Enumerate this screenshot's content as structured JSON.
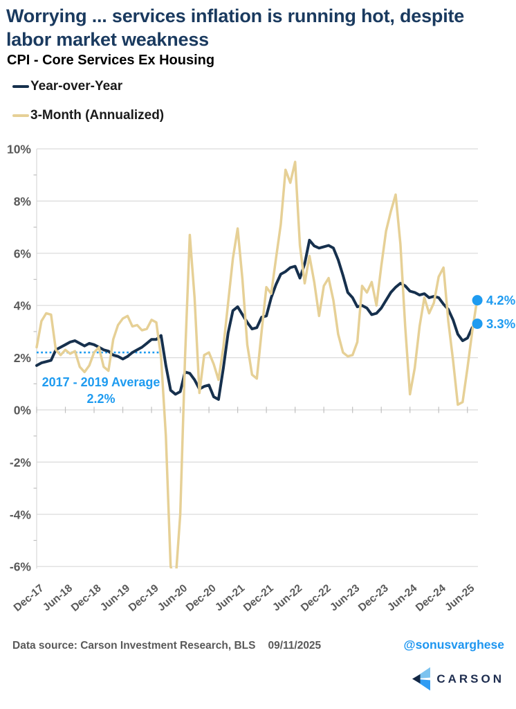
{
  "header": {
    "title_line1": "Worrying ... services inflation is running hot, despite",
    "title_line2": "labor market weakness",
    "subtitle": "CPI - Core Services Ex Housing"
  },
  "legend": {
    "items": [
      {
        "label": "Year-over-Year",
        "color": "#16304d"
      },
      {
        "label": "3-Month (Annualized)",
        "color": "#e6d096"
      }
    ]
  },
  "chart_data": {
    "type": "line",
    "title": "CPI - Core Services Ex Housing",
    "x_range": {
      "start": "Dec-2017",
      "end": "Aug-2025",
      "frequency": "monthly"
    },
    "months": [
      "Dec-17",
      "Jan-18",
      "Feb-18",
      "Mar-18",
      "Apr-18",
      "May-18",
      "Jun-18",
      "Jul-18",
      "Aug-18",
      "Sep-18",
      "Oct-18",
      "Nov-18",
      "Dec-18",
      "Jan-19",
      "Feb-19",
      "Mar-19",
      "Apr-19",
      "May-19",
      "Jun-19",
      "Jul-19",
      "Aug-19",
      "Sep-19",
      "Oct-19",
      "Nov-19",
      "Dec-19",
      "Jan-20",
      "Feb-20",
      "Mar-20",
      "Apr-20",
      "May-20",
      "Jun-20",
      "Jul-20",
      "Aug-20",
      "Sep-20",
      "Oct-20",
      "Nov-20",
      "Dec-20",
      "Jan-21",
      "Feb-21",
      "Mar-21",
      "Apr-21",
      "May-21",
      "Jun-21",
      "Jul-21",
      "Aug-21",
      "Sep-21",
      "Oct-21",
      "Nov-21",
      "Dec-21",
      "Jan-22",
      "Feb-22",
      "Mar-22",
      "Apr-22",
      "May-22",
      "Jun-22",
      "Jul-22",
      "Aug-22",
      "Sep-22",
      "Oct-22",
      "Nov-22",
      "Dec-22",
      "Jan-23",
      "Feb-23",
      "Mar-23",
      "Apr-23",
      "May-23",
      "Jun-23",
      "Jul-23",
      "Aug-23",
      "Sep-23",
      "Oct-23",
      "Nov-23",
      "Dec-23",
      "Jan-24",
      "Feb-24",
      "Mar-24",
      "Apr-24",
      "May-24",
      "Jun-24",
      "Jul-24",
      "Aug-24",
      "Sep-24",
      "Oct-24",
      "Nov-24",
      "Dec-24",
      "Jan-25",
      "Feb-25",
      "Mar-25",
      "Apr-25",
      "May-25",
      "Jun-25",
      "Jul-25",
      "Aug-25"
    ],
    "x_tick_labels": [
      "Dec-17",
      "Jun-18",
      "Dec-18",
      "Jun-19",
      "Dec-19",
      "Jun-20",
      "Dec-20",
      "Jun-21",
      "Dec-21",
      "Jun-22",
      "Dec-22",
      "Jun-23",
      "Dec-23",
      "Jun-24",
      "Dec-24",
      "Jun-25"
    ],
    "y_tick_labels": [
      "10%",
      "8%",
      "6%",
      "4%",
      "2%",
      "0%",
      "-2%",
      "-4%",
      "-6%"
    ],
    "y_tick_values": [
      10,
      8,
      6,
      4,
      2,
      0,
      -2,
      -4,
      -6
    ],
    "ylim": [
      -6,
      10
    ],
    "grid": "horizontal",
    "legend_position": "top-left",
    "series": [
      {
        "name": "Year-over-Year",
        "color": "#16304d",
        "line_width": 4,
        "values": [
          1.7,
          1.8,
          1.85,
          1.9,
          2.3,
          2.4,
          2.5,
          2.6,
          2.65,
          2.55,
          2.45,
          2.55,
          2.5,
          2.4,
          2.3,
          2.25,
          2.1,
          2.05,
          1.95,
          2.05,
          2.2,
          2.3,
          2.4,
          2.55,
          2.7,
          2.7,
          2.85,
          1.7,
          0.75,
          0.6,
          0.7,
          1.45,
          1.4,
          1.15,
          0.8,
          0.9,
          0.95,
          0.5,
          0.4,
          1.6,
          2.95,
          3.8,
          3.95,
          3.65,
          3.35,
          3.1,
          3.15,
          3.55,
          3.6,
          4.3,
          4.8,
          5.2,
          5.3,
          5.45,
          5.5,
          5.05,
          5.6,
          6.5,
          6.28,
          6.2,
          6.25,
          6.3,
          6.2,
          5.75,
          5.15,
          4.5,
          4.3,
          3.95,
          4.0,
          3.9,
          3.65,
          3.7,
          3.9,
          4.2,
          4.5,
          4.7,
          4.85,
          4.75,
          4.55,
          4.5,
          4.4,
          4.45,
          4.3,
          4.35,
          4.3,
          4.05,
          3.85,
          3.45,
          2.9,
          2.65,
          2.75,
          3.15,
          3.3
        ]
      },
      {
        "name": "3-Month (Annualized)",
        "color": "#e6d096",
        "line_width": 3.5,
        "values": [
          2.4,
          3.4,
          3.7,
          3.65,
          2.3,
          2.1,
          2.3,
          2.15,
          2.25,
          1.65,
          1.45,
          1.7,
          2.2,
          2.4,
          1.65,
          1.5,
          2.7,
          3.25,
          3.5,
          3.6,
          3.2,
          3.25,
          3.05,
          3.1,
          3.45,
          3.35,
          2.0,
          -1.0,
          -6.0,
          -6.6,
          -4.0,
          2.0,
          6.7,
          4.3,
          0.65,
          2.1,
          2.2,
          1.75,
          1.15,
          2.4,
          4.1,
          5.8,
          6.95,
          5.0,
          2.5,
          1.35,
          1.2,
          3.0,
          4.7,
          4.45,
          5.8,
          7.1,
          9.2,
          8.7,
          9.5,
          6.3,
          4.85,
          5.9,
          4.9,
          3.6,
          4.75,
          5.05,
          4.2,
          2.9,
          2.2,
          2.05,
          2.1,
          2.6,
          4.75,
          4.5,
          4.9,
          4.0,
          5.5,
          6.85,
          7.6,
          8.25,
          6.35,
          3.2,
          0.6,
          1.6,
          3.2,
          4.3,
          3.7,
          4.1,
          5.1,
          5.45,
          3.4,
          1.9,
          0.2,
          0.3,
          1.6,
          3.0,
          4.2
        ]
      }
    ],
    "annotations": {
      "average_line": {
        "value": 2.2,
        "label_line1": "2017 - 2019 Average",
        "label_line2": "2.2%",
        "color": "#1e9bf0",
        "style": "dotted",
        "span_month_index": [
          0,
          26
        ]
      },
      "end_markers": [
        {
          "series": "3-Month (Annualized)",
          "label": "4.2%",
          "value": 4.2,
          "color": "#1e9bf0"
        },
        {
          "series": "Year-over-Year",
          "label": "3.3%",
          "value": 3.3,
          "color": "#1e9bf0"
        }
      ]
    }
  },
  "footer": {
    "source_label": "Data source: Carson Investment Research, BLS",
    "date": "09/11/2025",
    "handle": "@sonusvarghese",
    "logo_text": "CARSON"
  }
}
